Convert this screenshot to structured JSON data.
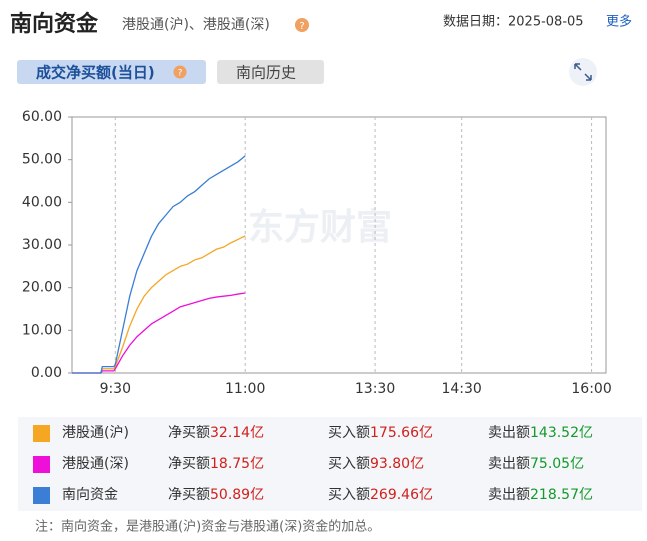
{
  "header": {
    "title": "南向资金",
    "subtitle": "港股通(沪)、港股通(深)",
    "date": "数据日期：2025-08-05",
    "more": "更多"
  },
  "tabs": [
    "成交净买额(当日)",
    "南向历史"
  ],
  "chart_data": {
    "type": "line",
    "watermark": "东方财富",
    "x": [
      0,
      20,
      21,
      29,
      30,
      35,
      40,
      45,
      50,
      55,
      60,
      65,
      70,
      75,
      80,
      85,
      90,
      95,
      100,
      105,
      110,
      115,
      120
    ],
    "series": [
      {
        "name": "港股通(沪)",
        "color": "#f5a623",
        "values": [
          0,
          0,
          1,
          1,
          1.5,
          6,
          11,
          15,
          18,
          20,
          21.5,
          23,
          24,
          25,
          25.5,
          26.5,
          27,
          28,
          29,
          29.5,
          30.5,
          31.3,
          32.14
        ]
      },
      {
        "name": "港股通(深)",
        "color": "#ee10d8",
        "values": [
          0,
          0,
          0.5,
          0.5,
          1,
          4,
          6.5,
          8.5,
          10,
          11.5,
          12.5,
          13.5,
          14.5,
          15.5,
          16,
          16.5,
          17,
          17.5,
          17.8,
          18,
          18.2,
          18.5,
          18.75
        ]
      },
      {
        "name": "南向资金",
        "color": "#3a7fd5",
        "values": [
          0,
          0,
          1.5,
          1.5,
          2,
          10,
          18,
          24,
          28,
          32,
          35,
          37,
          39,
          40,
          41.5,
          42.5,
          44,
          45.5,
          46.5,
          47.5,
          48.5,
          49.5,
          50.89
        ]
      }
    ],
    "xlim": [
      0,
      370
    ],
    "xticks": [
      {
        "value": 30,
        "label": "9:30"
      },
      {
        "value": 120,
        "label": "11:00"
      },
      {
        "value": 210,
        "label": "13:30"
      },
      {
        "value": 270,
        "label": "14:30"
      },
      {
        "value": 360,
        "label": "16:00"
      }
    ],
    "ylim": [
      0,
      60
    ],
    "yticks": [
      {
        "value": 0,
        "label": "0.00"
      },
      {
        "value": 10,
        "label": "10.00"
      },
      {
        "value": 20,
        "label": "20.00"
      },
      {
        "value": 30,
        "label": "30.00"
      },
      {
        "value": 40,
        "label": "40.00"
      },
      {
        "value": 50,
        "label": "50.00"
      },
      {
        "value": 60,
        "label": "60.00"
      }
    ],
    "xgrid": true
  },
  "summary": {
    "rows": [
      {
        "net_label": "净买额",
        "net": "32.14亿",
        "buy_label": "买入额",
        "buy": "175.66亿",
        "sell_label": "卖出额",
        "sell": "143.52亿"
      },
      {
        "net_label": "净买额",
        "net": "18.75亿",
        "buy_label": "买入额",
        "buy": "93.80亿",
        "sell_label": "卖出额",
        "sell": "75.05亿"
      },
      {
        "net_label": "净买额",
        "net": "50.89亿",
        "buy_label": "买入额",
        "buy": "269.46亿",
        "sell_label": "卖出额",
        "sell": "218.57亿"
      }
    ],
    "note": "注：南向资金，是港股通(沪)资金与港股通(深)资金的加总。"
  }
}
